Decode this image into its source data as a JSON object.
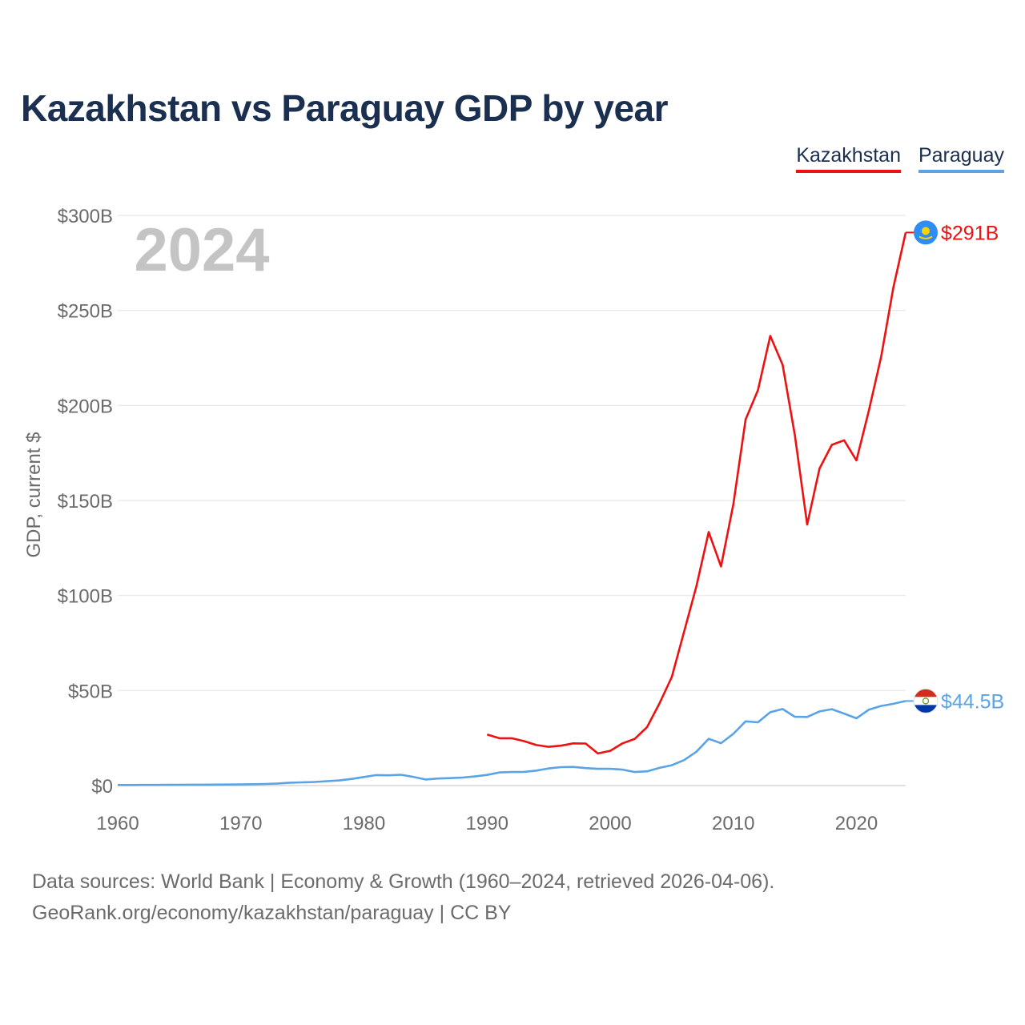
{
  "title": "Kazakhstan vs Paraguay GDP by year",
  "legend": [
    {
      "name": "Kazakhstan",
      "color": "#ee1111"
    },
    {
      "name": "Paraguay",
      "color": "#5aa3e6"
    }
  ],
  "footer": {
    "line1": "Data sources: World Bank | Economy & Growth (1960–2024, retrieved 2026-04-06).",
    "line2": "GeoRank.org/economy/kazakhstan/paraguay | CC BY"
  },
  "chart_data": {
    "type": "line",
    "title": "Kazakhstan vs Paraguay GDP by year",
    "xlabel": "",
    "ylabel": "GDP, current $",
    "year_label": "2024",
    "xlim": [
      1960,
      2024
    ],
    "ylim": [
      0,
      300
    ],
    "xticks": [
      1960,
      1970,
      1980,
      1990,
      2000,
      2010,
      2020
    ],
    "yticks": [
      {
        "value": 0,
        "label": "$0"
      },
      {
        "value": 50,
        "label": "$50B"
      },
      {
        "value": 100,
        "label": "$100B"
      },
      {
        "value": 150,
        "label": "$150B"
      },
      {
        "value": 200,
        "label": "$200B"
      },
      {
        "value": 250,
        "label": "$250B"
      },
      {
        "value": 300,
        "label": "$300B"
      }
    ],
    "series": [
      {
        "name": "Kazakhstan",
        "color": "#ee1111",
        "end_label": "$291B",
        "flag": "kazakhstan-flag",
        "x": [
          1990,
          1991,
          1992,
          1993,
          1994,
          1995,
          1996,
          1997,
          1998,
          1999,
          2000,
          2001,
          2002,
          2003,
          2004,
          2005,
          2006,
          2007,
          2008,
          2009,
          2010,
          2011,
          2012,
          2013,
          2014,
          2015,
          2016,
          2017,
          2018,
          2019,
          2020,
          2021,
          2022,
          2023,
          2024
        ],
        "values": [
          26.9,
          24.9,
          24.9,
          23.4,
          21.3,
          20.4,
          21.0,
          22.2,
          22.1,
          16.9,
          18.3,
          22.2,
          24.6,
          30.8,
          43.2,
          57.1,
          81.0,
          104.8,
          133.4,
          115.3,
          148.0,
          192.6,
          208.0,
          236.6,
          221.4,
          184.4,
          137.3,
          166.8,
          179.3,
          181.7,
          171.1,
          197.1,
          225.5,
          262.0,
          291.0
        ]
      },
      {
        "name": "Paraguay",
        "color": "#5aa3e6",
        "end_label": "$44.5B",
        "flag": "paraguay-flag",
        "x": [
          1960,
          1961,
          1962,
          1963,
          1964,
          1965,
          1966,
          1967,
          1968,
          1969,
          1970,
          1971,
          1972,
          1973,
          1974,
          1975,
          1976,
          1977,
          1978,
          1979,
          1980,
          1981,
          1982,
          1983,
          1984,
          1985,
          1986,
          1987,
          1988,
          1989,
          1990,
          1991,
          1992,
          1993,
          1994,
          1995,
          1996,
          1997,
          1998,
          1999,
          2000,
          2001,
          2002,
          2003,
          2004,
          2005,
          2006,
          2007,
          2008,
          2009,
          2010,
          2011,
          2012,
          2013,
          2014,
          2015,
          2016,
          2017,
          2018,
          2019,
          2020,
          2021,
          2022,
          2023,
          2024
        ],
        "values": [
          0.28,
          0.3,
          0.32,
          0.35,
          0.38,
          0.42,
          0.45,
          0.48,
          0.52,
          0.56,
          0.6,
          0.7,
          0.85,
          1.1,
          1.5,
          1.7,
          1.9,
          2.3,
          2.7,
          3.5,
          4.5,
          5.5,
          5.4,
          5.7,
          4.6,
          3.2,
          3.7,
          3.9,
          4.2,
          4.8,
          5.6,
          6.9,
          7.1,
          7.2,
          7.9,
          9.0,
          9.7,
          9.8,
          9.2,
          8.8,
          8.8,
          8.4,
          7.1,
          7.5,
          9.3,
          10.7,
          13.4,
          17.8,
          24.6,
          22.3,
          27.2,
          33.8,
          33.3,
          38.6,
          40.3,
          36.2,
          36.1,
          39.0,
          40.2,
          37.9,
          35.4,
          39.9,
          41.9,
          43.0,
          44.5
        ]
      }
    ]
  }
}
